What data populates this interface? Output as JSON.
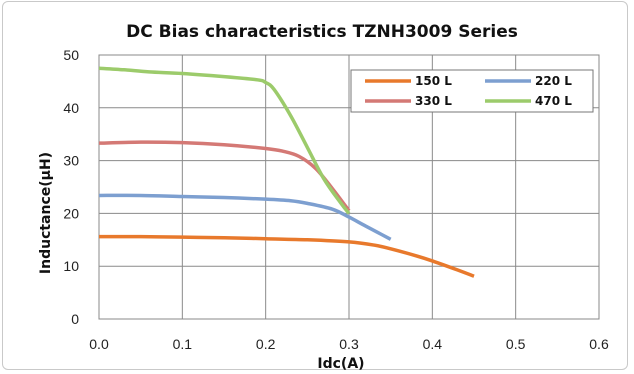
{
  "chart_data": {
    "type": "line",
    "title": "DC Bias characteristics TZNH3009 Series",
    "xlabel": "Idc(A)",
    "ylabel": "Inductance(µH)",
    "xlim": [
      0.0,
      0.6
    ],
    "ylim": [
      0,
      50
    ],
    "x_ticks": [
      "0.0",
      "0.1",
      "0.2",
      "0.3",
      "0.4",
      "0.5",
      "0.6"
    ],
    "y_ticks": [
      "0",
      "10",
      "20",
      "30",
      "40",
      "50"
    ],
    "grid": true,
    "legend_position": "top-right",
    "series": [
      {
        "name": "150 L",
        "color": "#e8792c",
        "points": [
          [
            0.0,
            15.6
          ],
          [
            0.05,
            15.6
          ],
          [
            0.1,
            15.5
          ],
          [
            0.15,
            15.4
          ],
          [
            0.2,
            15.2
          ],
          [
            0.25,
            15.0
          ],
          [
            0.3,
            14.6
          ],
          [
            0.33,
            14.0
          ],
          [
            0.35,
            13.3
          ],
          [
            0.38,
            12.0
          ],
          [
            0.4,
            11.0
          ],
          [
            0.43,
            9.3
          ],
          [
            0.45,
            8.1
          ]
        ]
      },
      {
        "name": "220 L",
        "color": "#7d9fd0",
        "points": [
          [
            0.0,
            23.4
          ],
          [
            0.05,
            23.4
          ],
          [
            0.1,
            23.2
          ],
          [
            0.15,
            23.0
          ],
          [
            0.2,
            22.7
          ],
          [
            0.23,
            22.4
          ],
          [
            0.25,
            21.9
          ],
          [
            0.28,
            20.8
          ],
          [
            0.3,
            19.3
          ],
          [
            0.32,
            17.6
          ],
          [
            0.35,
            15.1
          ]
        ]
      },
      {
        "name": "330 L",
        "color": "#d47975",
        "points": [
          [
            0.0,
            33.3
          ],
          [
            0.05,
            33.5
          ],
          [
            0.1,
            33.4
          ],
          [
            0.15,
            33.0
          ],
          [
            0.2,
            32.3
          ],
          [
            0.22,
            31.8
          ],
          [
            0.24,
            30.8
          ],
          [
            0.26,
            28.5
          ],
          [
            0.28,
            24.7
          ],
          [
            0.3,
            20.5
          ]
        ]
      },
      {
        "name": "470 L",
        "color": "#9ccb6b",
        "points": [
          [
            0.0,
            47.5
          ],
          [
            0.03,
            47.2
          ],
          [
            0.06,
            46.8
          ],
          [
            0.1,
            46.5
          ],
          [
            0.15,
            45.9
          ],
          [
            0.19,
            45.3
          ],
          [
            0.2,
            44.8
          ],
          [
            0.21,
            43.5
          ],
          [
            0.23,
            38.5
          ],
          [
            0.25,
            32.5
          ],
          [
            0.27,
            26.5
          ],
          [
            0.29,
            22.0
          ],
          [
            0.3,
            20.0
          ]
        ]
      }
    ]
  }
}
